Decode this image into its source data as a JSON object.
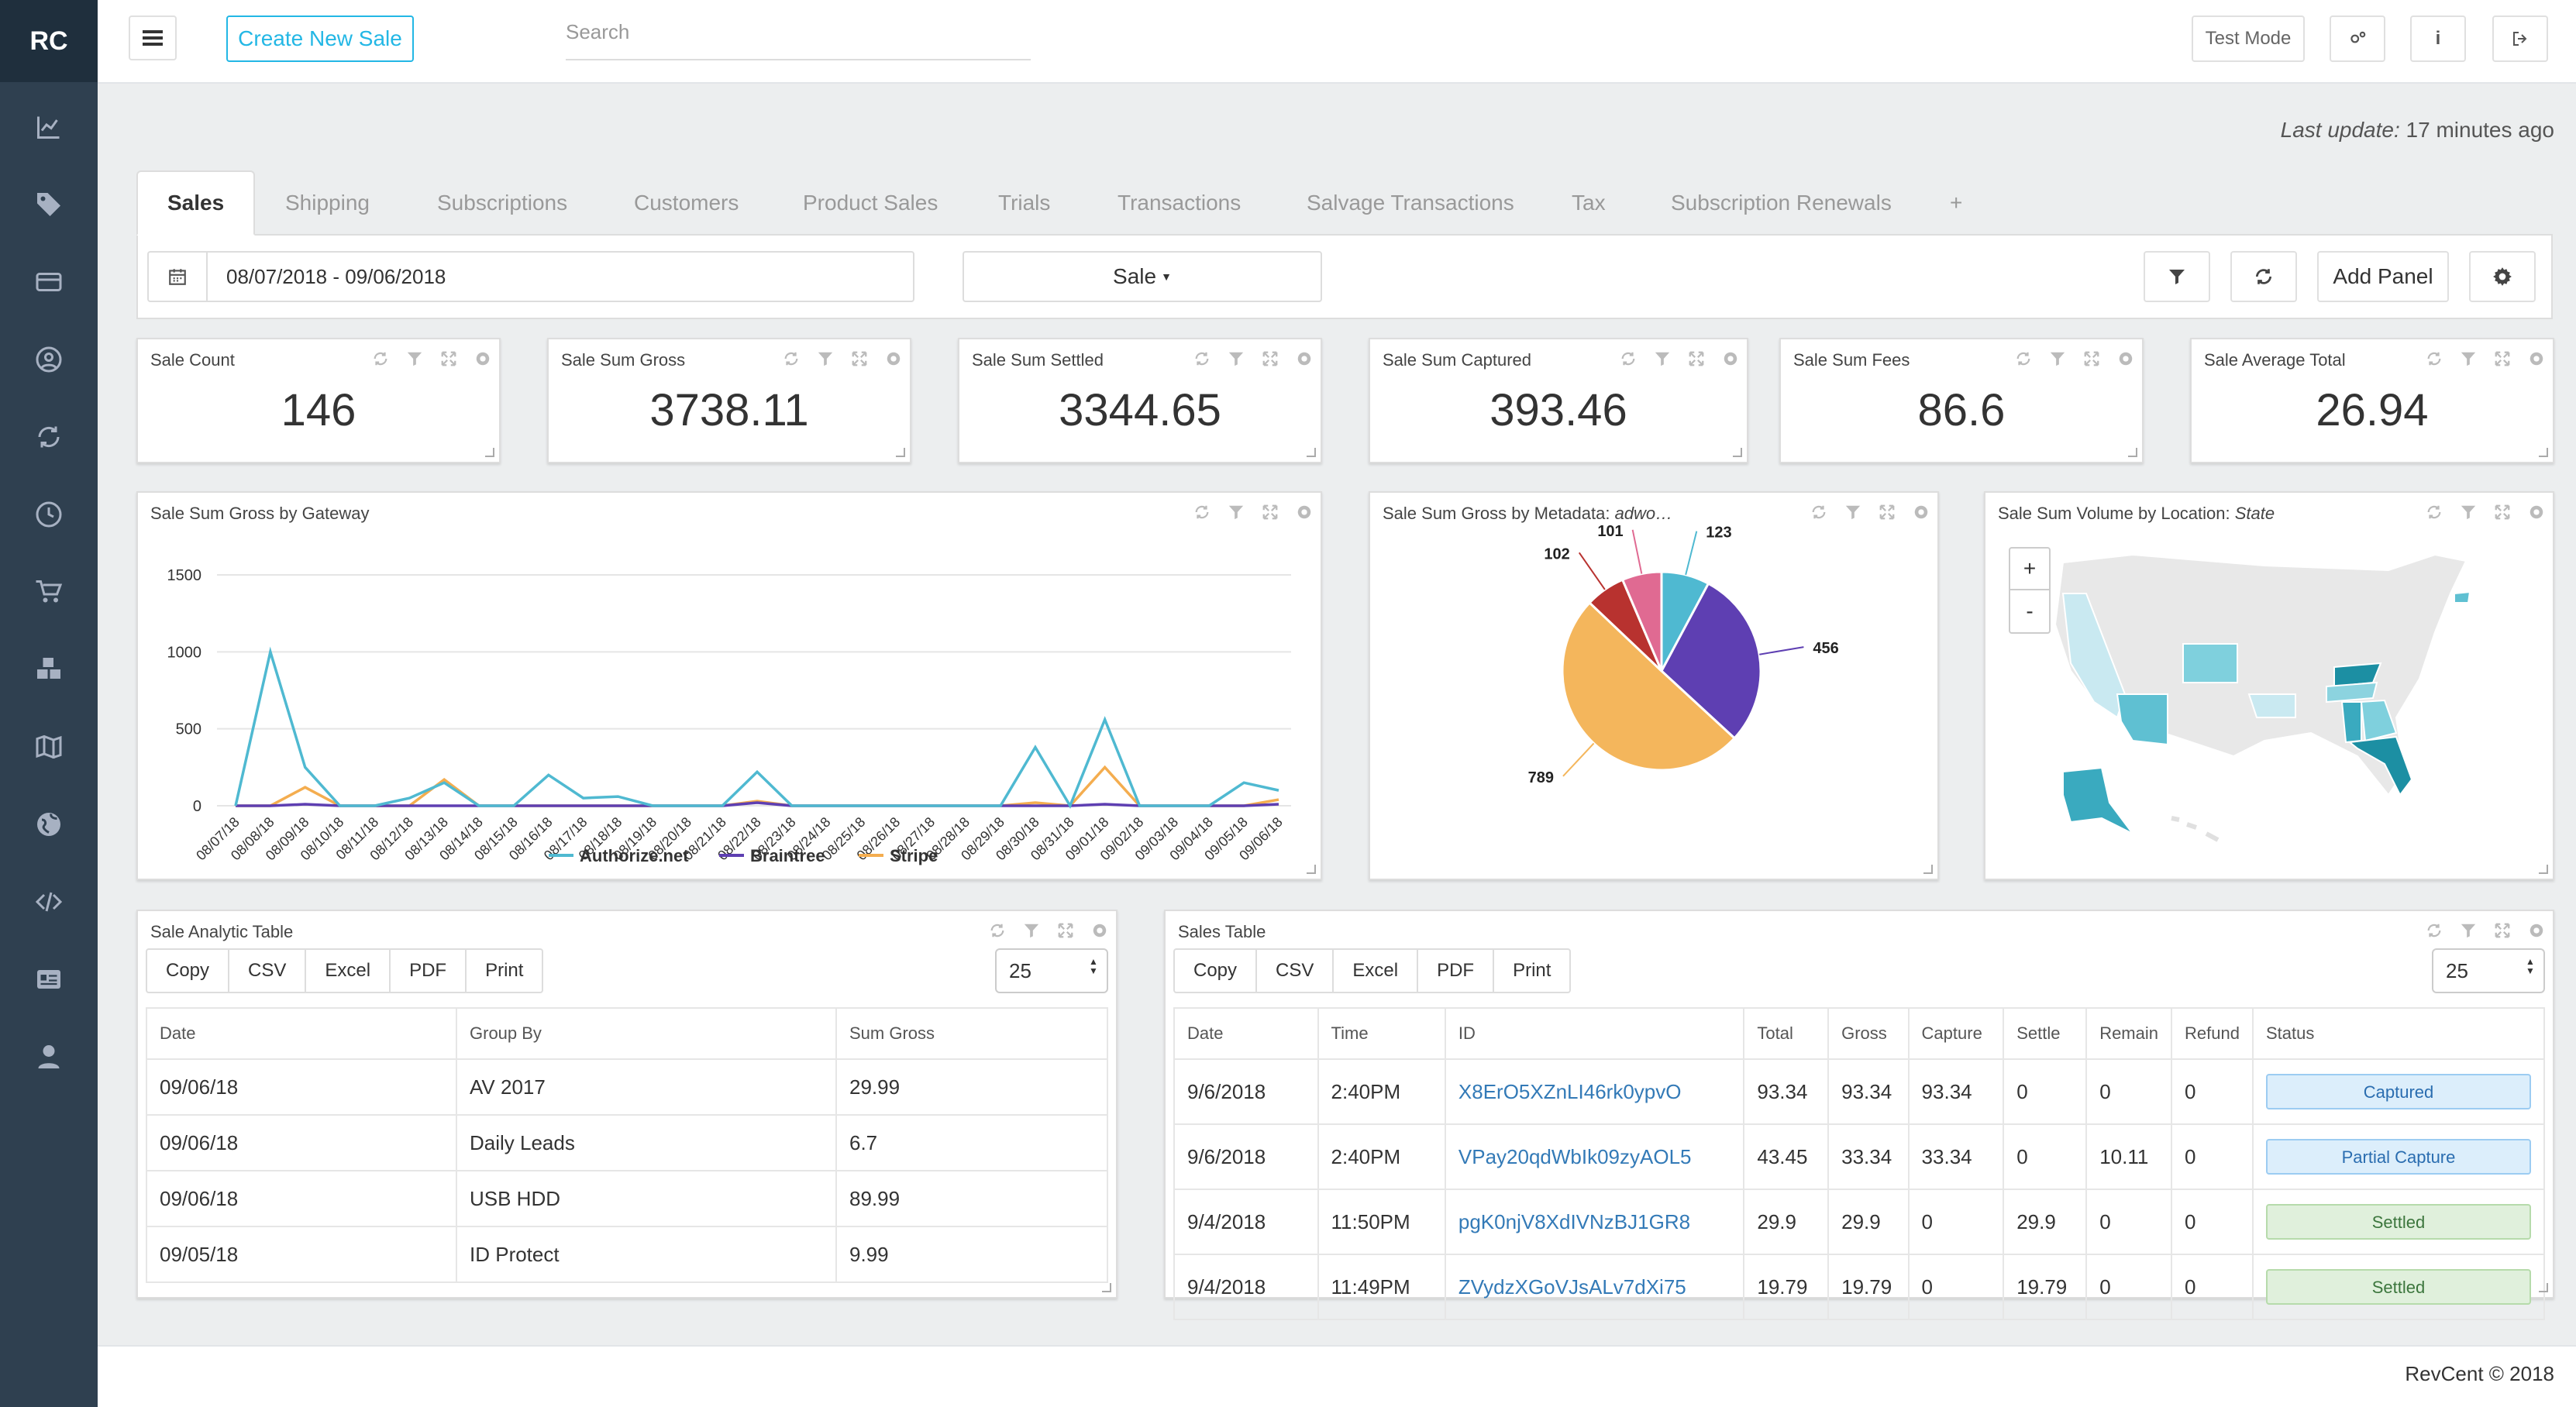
{
  "app": {
    "logo": "RC"
  },
  "topbar": {
    "create_label": "Create New Sale",
    "search_placeholder": "Search",
    "test_mode": "Test Mode"
  },
  "last_update": {
    "label": "Last update:",
    "value": "17 minutes ago"
  },
  "tabs": [
    "Sales",
    "Shipping",
    "Subscriptions",
    "Customers",
    "Product Sales",
    "Trials",
    "Transactions",
    "Salvage Transactions",
    "Tax",
    "Subscription Renewals",
    "+"
  ],
  "filters": {
    "date_range": "08/07/2018 - 09/06/2018",
    "type": "Sale",
    "add_panel": "Add Panel"
  },
  "stats": [
    {
      "label": "Sale Count",
      "value": "146"
    },
    {
      "label": "Sale Sum Gross",
      "value": "3738.11"
    },
    {
      "label": "Sale Sum Settled",
      "value": "3344.65"
    },
    {
      "label": "Sale Sum Captured",
      "value": "393.46"
    },
    {
      "label": "Sale Sum Fees",
      "value": "86.6"
    },
    {
      "label": "Sale Average Total",
      "value": "26.94"
    }
  ],
  "gateway_panel": {
    "title": "Sale Sum Gross by Gateway"
  },
  "metadata_panel": {
    "title": "Sale Sum Gross by Metadata: ",
    "title_italic": "adwo…"
  },
  "location_panel": {
    "title": "Sale Sum Volume by Location: ",
    "title_italic": "State",
    "zoom_in": "+",
    "zoom_out": "-"
  },
  "chart_data": [
    {
      "type": "line",
      "title": "Sale Sum Gross by Gateway",
      "x": [
        "08/07/18",
        "08/08/18",
        "08/09/18",
        "08/10/18",
        "08/11/18",
        "08/12/18",
        "08/13/18",
        "08/14/18",
        "08/15/18",
        "08/16/18",
        "08/17/18",
        "08/18/18",
        "08/19/18",
        "08/20/18",
        "08/21/18",
        "08/22/18",
        "08/23/18",
        "08/24/18",
        "08/25/18",
        "08/26/18",
        "08/27/18",
        "08/28/18",
        "08/29/18",
        "08/30/18",
        "08/31/18",
        "09/01/18",
        "09/02/18",
        "09/03/18",
        "09/04/18",
        "09/05/18",
        "09/06/18"
      ],
      "ylim": [
        0,
        1500
      ],
      "yticks": [
        0,
        500,
        1000,
        1500
      ],
      "grid": true,
      "legend": "bottom",
      "series": [
        {
          "name": "Authorize.net",
          "color": "#4fb9d1",
          "values": [
            0,
            1000,
            250,
            0,
            0,
            50,
            150,
            0,
            0,
            200,
            50,
            60,
            0,
            0,
            0,
            220,
            0,
            0,
            0,
            0,
            0,
            0,
            0,
            380,
            0,
            560,
            0,
            0,
            0,
            150,
            100
          ]
        },
        {
          "name": "Braintree",
          "color": "#5e3fb2",
          "values": [
            0,
            0,
            10,
            0,
            0,
            0,
            0,
            0,
            0,
            0,
            0,
            0,
            0,
            0,
            0,
            20,
            0,
            0,
            0,
            0,
            0,
            0,
            0,
            0,
            0,
            10,
            0,
            0,
            0,
            0,
            10
          ]
        },
        {
          "name": "Stripe",
          "color": "#f4ad4f",
          "values": [
            0,
            0,
            120,
            0,
            0,
            0,
            170,
            0,
            0,
            0,
            0,
            0,
            0,
            0,
            0,
            30,
            0,
            0,
            0,
            0,
            0,
            0,
            0,
            20,
            0,
            250,
            0,
            0,
            0,
            0,
            40
          ]
        }
      ]
    },
    {
      "type": "pie",
      "title": "Sale Sum Gross by Metadata: adwo…",
      "values": [
        123,
        456,
        789,
        102,
        101
      ],
      "colors": [
        "#4fb9d1",
        "#5e3fb2",
        "#f4b65c",
        "#b8322f",
        "#e06a92"
      ]
    }
  ],
  "analytic_table": {
    "title": "Sale Analytic Table",
    "buttons": [
      "Copy",
      "CSV",
      "Excel",
      "PDF",
      "Print"
    ],
    "page_size": "25",
    "headers": [
      "Date",
      "Group By",
      "Sum Gross"
    ],
    "rows": [
      [
        "09/06/18",
        "AV 2017",
        "29.99"
      ],
      [
        "09/06/18",
        "Daily Leads",
        "6.7"
      ],
      [
        "09/06/18",
        "USB HDD",
        "89.99"
      ],
      [
        "09/05/18",
        "ID Protect",
        "9.99"
      ]
    ]
  },
  "sales_table": {
    "title": "Sales Table",
    "buttons": [
      "Copy",
      "CSV",
      "Excel",
      "PDF",
      "Print"
    ],
    "page_size": "25",
    "headers": [
      "Date",
      "Time",
      "ID",
      "Total",
      "Gross",
      "Capture",
      "Settle",
      "Remain",
      "Refund",
      "Status"
    ],
    "rows": [
      [
        "9/6/2018",
        "2:40PM",
        "X8ErO5XZnLI46rk0ypvO",
        "93.34",
        "93.34",
        "93.34",
        "0",
        "0",
        "0",
        "Captured"
      ],
      [
        "9/6/2018",
        "2:40PM",
        "VPay20qdWbIk09zyAOL5",
        "43.45",
        "33.34",
        "33.34",
        "0",
        "10.11",
        "0",
        "Partial Capture"
      ],
      [
        "9/4/2018",
        "11:50PM",
        "pgK0njV8XdIVNzBJ1GR8",
        "29.9",
        "29.9",
        "0",
        "29.9",
        "0",
        "0",
        "Settled"
      ],
      [
        "9/4/2018",
        "11:49PM",
        "ZVydzXGoVJsALv7dXi75",
        "19.79",
        "19.79",
        "0",
        "19.79",
        "0",
        "0",
        "Settled"
      ]
    ]
  },
  "footer": {
    "copyright": "RevCent © 2018"
  }
}
